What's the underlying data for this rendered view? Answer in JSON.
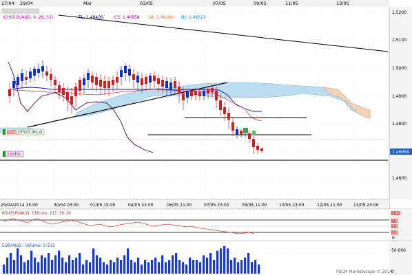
{
  "top_dates": [
    "27/04",
    "29/04",
    "Mai",
    "03/05",
    "07/05",
    "09/05",
    "11/05",
    "13/05"
  ],
  "indicator_header": {
    "ich_label": "ICH(EUR/AUD, 9, 26, 52)",
    "tl_label": "TL: 1,48406",
    "cs_label": "CS: 1,46958",
    "sa_label": "SA: 1,48189",
    "sb_label": "SB: 1,48523",
    "tl_color": "#000080",
    "cs_color": "#800080",
    "sa_color": "#e07020",
    "sb_color": "#2080c0"
  },
  "price_axis": {
    "ticks": [
      "1,5200",
      "1,5100",
      "1,5000",
      "1,4900",
      "1,4800",
      "1,4700",
      "1,4600"
    ],
    "current_price": "1,46958",
    "current_color": "#2060c0"
  },
  "time_axis": {
    "labels": [
      "25/04/2014 15:00",
      "30/04 03:00",
      "01/05 15:00",
      "04/05 23:00",
      "06/05 11:00",
      "07/05 23:00",
      "09/05 11:00",
      "10/05 23:00",
      "12/05 11:00",
      "13/05 23:00"
    ]
  },
  "order_tags": {
    "stop_label": "Stop",
    "stop_value": "OP/29,46,4)",
    "limit_label": "Limite"
  },
  "rsi_panel": {
    "title": "RSI(EUR/AUD, Clôture, 21): 30,19",
    "levels": [
      "100",
      "70",
      "50",
      "30",
      "0"
    ],
    "last_value": 30.19
  },
  "volume_panel": {
    "title": "EUR/AUD - Volume: 5 332",
    "ticks": [
      "50 000",
      "0"
    ],
    "bars": [
      20,
      35,
      45,
      30,
      55,
      40,
      25,
      30,
      50,
      35,
      25,
      40,
      35,
      45,
      30,
      40,
      50,
      35,
      25,
      40,
      30,
      35,
      45,
      20,
      30,
      25,
      55,
      40,
      35,
      25,
      20,
      30,
      25,
      35,
      30,
      40,
      55,
      30,
      25,
      35,
      20,
      30,
      25,
      30,
      35,
      25,
      40,
      25,
      30,
      40,
      45,
      30,
      25,
      20,
      35,
      30,
      30,
      25,
      40,
      35,
      45,
      30,
      50,
      55,
      60,
      55,
      30,
      35,
      25,
      30,
      35,
      45,
      25,
      30,
      20
    ]
  },
  "footer": {
    "watermark": "FXCM Marketscope © 2014"
  }
}
